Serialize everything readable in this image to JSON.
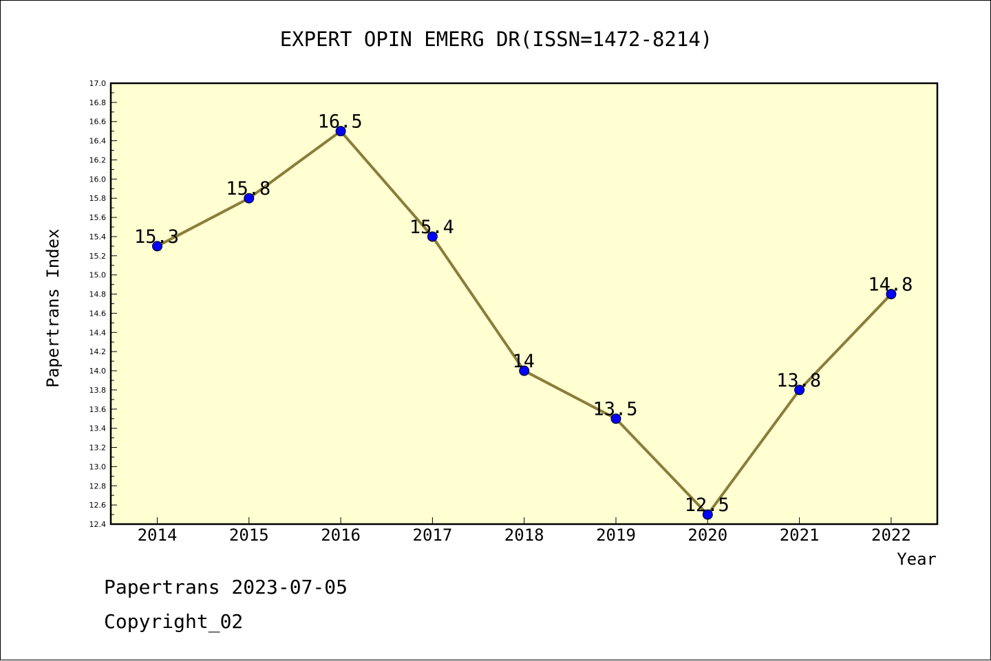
{
  "chart_data": {
    "type": "line",
    "title": "EXPERT OPIN EMERG DR(ISSN=1472-8214)",
    "xlabel": "Year",
    "ylabel": "Papertrans Index",
    "categories": [
      "2014",
      "2015",
      "2016",
      "2017",
      "2018",
      "2019",
      "2020",
      "2021",
      "2022"
    ],
    "values": [
      15.3,
      15.8,
      16.5,
      15.4,
      14.0,
      13.5,
      12.5,
      13.8,
      14.8
    ],
    "data_labels": [
      "15.3",
      "15.8",
      "16.5",
      "15.4",
      "14",
      "13.5",
      "12.5",
      "13.8",
      "14.8"
    ],
    "ylim": [
      12.4,
      17.0
    ],
    "ytick_step": 0.2,
    "grid": false,
    "colors": {
      "plot_background": "#ffffd2",
      "line": "#8b7d3a",
      "marker": "#0000ff"
    }
  },
  "footer": {
    "line1": "Papertrans 2023-07-05",
    "line2": "Copyright_02"
  }
}
